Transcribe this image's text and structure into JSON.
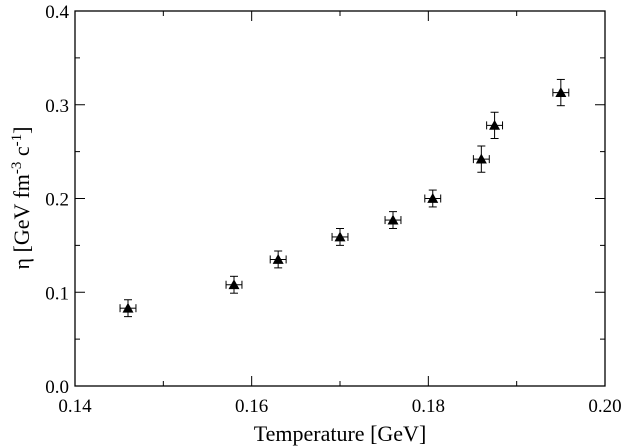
{
  "chart_data": {
    "type": "scatter",
    "xlabel": "Temperature [GeV]",
    "ylabel": {
      "symbol": "η",
      "open": " [GeV fm",
      "exp1": "-3",
      "mid": " c",
      "exp2": "-1",
      "close": "]"
    },
    "xlim": [
      0.14,
      0.2
    ],
    "ylim": [
      0.0,
      0.4
    ],
    "xticks": [
      "0.14",
      "0.16",
      "0.18",
      "0.20"
    ],
    "yticks": [
      "0.0",
      "0.1",
      "0.2",
      "0.3",
      "0.4"
    ],
    "grid": false,
    "marker": "filled-triangle",
    "color": "#000000",
    "series": [
      {
        "points": [
          {
            "x": 0.146,
            "y": 0.083,
            "xerr": 0.0009,
            "yerr": 0.009
          },
          {
            "x": 0.158,
            "y": 0.108,
            "xerr": 0.0009,
            "yerr": 0.009
          },
          {
            "x": 0.163,
            "y": 0.135,
            "xerr": 0.0009,
            "yerr": 0.009
          },
          {
            "x": 0.17,
            "y": 0.159,
            "xerr": 0.0009,
            "yerr": 0.009
          },
          {
            "x": 0.176,
            "y": 0.177,
            "xerr": 0.0009,
            "yerr": 0.009
          },
          {
            "x": 0.1805,
            "y": 0.2,
            "xerr": 0.0009,
            "yerr": 0.009
          },
          {
            "x": 0.186,
            "y": 0.242,
            "xerr": 0.0009,
            "yerr": 0.014
          },
          {
            "x": 0.1875,
            "y": 0.278,
            "xerr": 0.0009,
            "yerr": 0.014
          },
          {
            "x": 0.195,
            "y": 0.313,
            "xerr": 0.0009,
            "yerr": 0.014
          }
        ]
      }
    ]
  }
}
